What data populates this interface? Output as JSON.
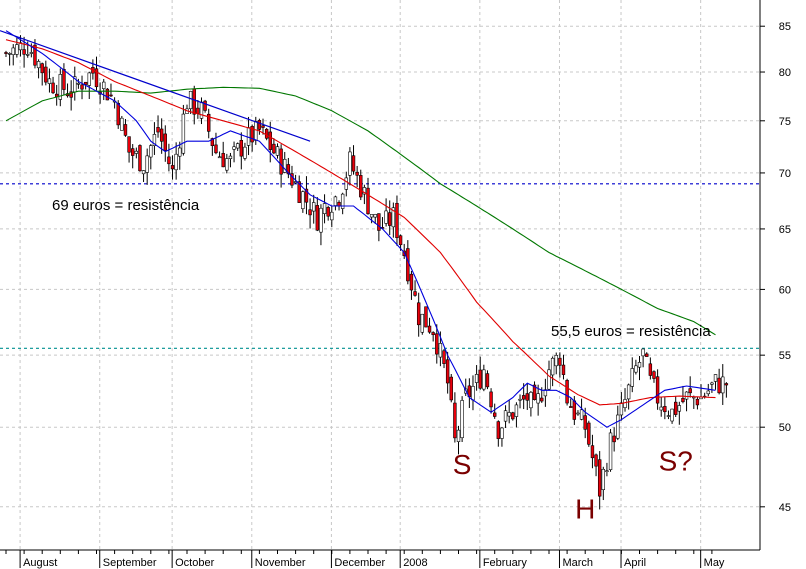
{
  "chart_data": {
    "type": "candlestick",
    "scale": "log",
    "grid": true,
    "y_ticks": [
      45,
      50,
      55,
      60,
      65,
      70,
      75,
      80,
      85
    ],
    "ylim": [
      42.5,
      88
    ],
    "x_labels": [
      "August",
      "September",
      "October",
      "November",
      "December",
      "2008",
      "February",
      "March",
      "April",
      "May"
    ],
    "colors": {
      "down": "#e8000b",
      "up": "#ffffff",
      "ma_short": "#0000dd",
      "ma_medium": "#e00000",
      "ma_long": "#007700",
      "trendline": "#0000cc",
      "resistance_upper": "#0000cc",
      "resistance_lower": "#009090",
      "annotation": "#7a0000"
    },
    "resistance_lines": [
      {
        "level": 69,
        "label": "69 euros = resistência"
      },
      {
        "level": 55.5,
        "label": "55,5 euros = resistência"
      }
    ],
    "trendline": {
      "from_index": 0,
      "to_index": 84,
      "from_value": 84.5,
      "to_value": 73
    },
    "pattern_labels": [
      {
        "text": "S",
        "index": 126,
        "value": 47
      },
      {
        "text": "H",
        "index": 160,
        "value": 44.3
      },
      {
        "text": "S?",
        "index": 185,
        "value": 47.2
      }
    ],
    "close_anchors": [
      [
        0,
        82
      ],
      [
        6,
        83
      ],
      [
        12,
        79
      ],
      [
        18,
        78
      ],
      [
        24,
        80
      ],
      [
        30,
        77
      ],
      [
        34,
        72
      ],
      [
        38,
        71
      ],
      [
        42,
        74
      ],
      [
        46,
        70
      ],
      [
        50,
        77
      ],
      [
        54,
        76
      ],
      [
        58,
        72
      ],
      [
        62,
        71
      ],
      [
        66,
        73
      ],
      [
        70,
        74
      ],
      [
        74,
        72
      ],
      [
        78,
        70
      ],
      [
        82,
        68
      ],
      [
        86,
        66
      ],
      [
        88,
        67
      ],
      [
        92,
        68
      ],
      [
        95,
        71
      ],
      [
        99,
        68
      ],
      [
        103,
        65
      ],
      [
        107,
        66
      ],
      [
        110,
        63
      ],
      [
        114,
        58
      ],
      [
        118,
        57
      ],
      [
        122,
        53
      ],
      [
        124,
        49
      ],
      [
        127,
        52
      ],
      [
        130,
        53
      ],
      [
        132,
        54
      ],
      [
        134,
        52
      ],
      [
        136,
        50
      ],
      [
        140,
        51
      ],
      [
        144,
        52
      ],
      [
        146,
        51
      ],
      [
        150,
        54
      ],
      [
        153,
        55
      ],
      [
        155,
        52
      ],
      [
        157,
        51
      ],
      [
        160,
        50
      ],
      [
        162,
        48
      ],
      [
        164,
        46
      ],
      [
        167,
        49
      ],
      [
        170,
        51
      ],
      [
        174,
        54
      ],
      [
        176,
        55
      ],
      [
        178,
        53
      ],
      [
        180,
        52
      ],
      [
        184,
        51
      ],
      [
        188,
        52
      ],
      [
        192,
        52
      ],
      [
        196,
        53
      ]
    ],
    "ma_short_points": [
      [
        0,
        84.5
      ],
      [
        10,
        82
      ],
      [
        20,
        79
      ],
      [
        30,
        77
      ],
      [
        36,
        75
      ],
      [
        40,
        73
      ],
      [
        44,
        72
      ],
      [
        50,
        73
      ],
      [
        56,
        73
      ],
      [
        62,
        74
      ],
      [
        70,
        73
      ],
      [
        78,
        70
      ],
      [
        84,
        68
      ],
      [
        90,
        67
      ],
      [
        96,
        67
      ],
      [
        100,
        66
      ],
      [
        104,
        65
      ],
      [
        110,
        63
      ],
      [
        116,
        59
      ],
      [
        122,
        55
      ],
      [
        128,
        52
      ],
      [
        134,
        51
      ],
      [
        140,
        52
      ],
      [
        144,
        53
      ],
      [
        148,
        52.5
      ],
      [
        152,
        52.5
      ],
      [
        156,
        52
      ],
      [
        160,
        51
      ],
      [
        166,
        50
      ],
      [
        170,
        50.5
      ],
      [
        176,
        51.5
      ],
      [
        182,
        52.5
      ],
      [
        188,
        52.8
      ],
      [
        196,
        52.5
      ]
    ],
    "ma_medium_points": [
      [
        0,
        83.5
      ],
      [
        10,
        82.5
      ],
      [
        20,
        81
      ],
      [
        30,
        79
      ],
      [
        40,
        77.5
      ],
      [
        50,
        76
      ],
      [
        60,
        75
      ],
      [
        70,
        74
      ],
      [
        80,
        72
      ],
      [
        90,
        70
      ],
      [
        100,
        68
      ],
      [
        110,
        66
      ],
      [
        120,
        63
      ],
      [
        130,
        59
      ],
      [
        140,
        56
      ],
      [
        150,
        53.5
      ],
      [
        158,
        52.2
      ],
      [
        164,
        51.5
      ],
      [
        170,
        51.6
      ],
      [
        178,
        52
      ],
      [
        186,
        52.1
      ],
      [
        196,
        52
      ]
    ],
    "ma_long_points": [
      [
        0,
        75
      ],
      [
        10,
        77
      ],
      [
        20,
        78
      ],
      [
        30,
        78
      ],
      [
        40,
        77.8
      ],
      [
        50,
        78.2
      ],
      [
        60,
        78.4
      ],
      [
        70,
        78.3
      ],
      [
        80,
        77.5
      ],
      [
        90,
        76
      ],
      [
        100,
        74
      ],
      [
        110,
        71.5
      ],
      [
        120,
        69
      ],
      [
        130,
        67
      ],
      [
        140,
        65
      ],
      [
        150,
        63
      ],
      [
        160,
        61.5
      ],
      [
        170,
        60
      ],
      [
        180,
        58.5
      ],
      [
        190,
        57.5
      ],
      [
        196,
        56.5
      ]
    ]
  }
}
